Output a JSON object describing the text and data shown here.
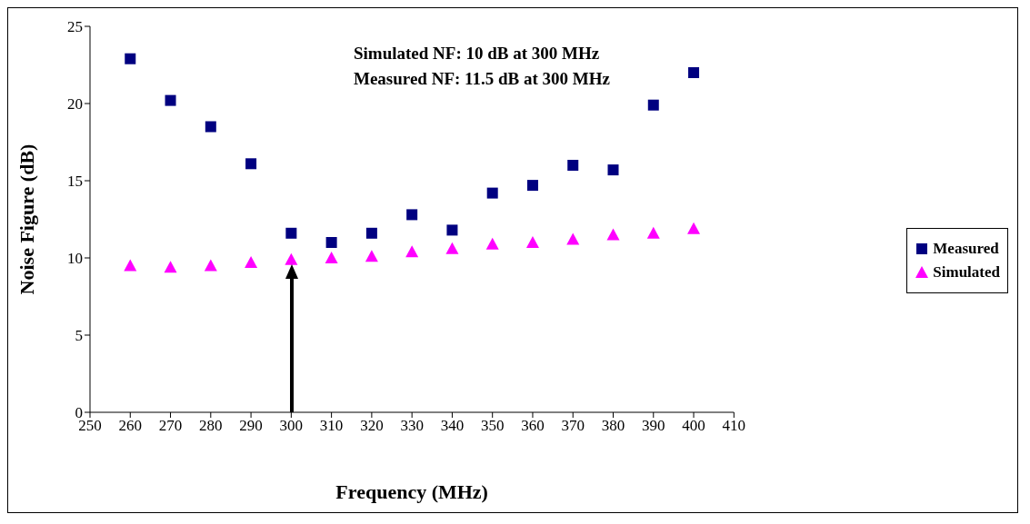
{
  "chart_data": {
    "type": "scatter",
    "xlabel": "Frequency (MHz)",
    "ylabel": "Noise Figure (dB)",
    "x": [
      260,
      270,
      280,
      290,
      300,
      310,
      320,
      330,
      340,
      350,
      360,
      370,
      380,
      390,
      400
    ],
    "series": [
      {
        "name": "Measured",
        "color": "#000080",
        "marker": "square",
        "values": [
          22.9,
          20.2,
          18.5,
          16.1,
          11.6,
          11.0,
          11.6,
          12.8,
          11.8,
          14.2,
          14.7,
          16.0,
          15.7,
          19.9,
          22.0
        ]
      },
      {
        "name": "Simulated",
        "color": "#ff00ff",
        "marker": "triangle",
        "values": [
          9.5,
          9.4,
          9.5,
          9.7,
          9.9,
          10.0,
          10.1,
          10.4,
          10.6,
          10.9,
          11.0,
          11.2,
          11.5,
          11.6,
          11.9
        ]
      }
    ],
    "xlim": [
      250,
      410
    ],
    "xticks": [
      250,
      260,
      270,
      280,
      290,
      300,
      310,
      320,
      330,
      340,
      350,
      360,
      370,
      380,
      390,
      400,
      410
    ],
    "ylim": [
      0,
      25
    ],
    "yticks": [
      0,
      5,
      10,
      15,
      20,
      25
    ],
    "grid": false,
    "legend": "right",
    "annotations": [
      "Simulated NF: 10 dB at 300 MHz",
      "Measured NF: 11.5 dB at 300 MHz"
    ]
  }
}
